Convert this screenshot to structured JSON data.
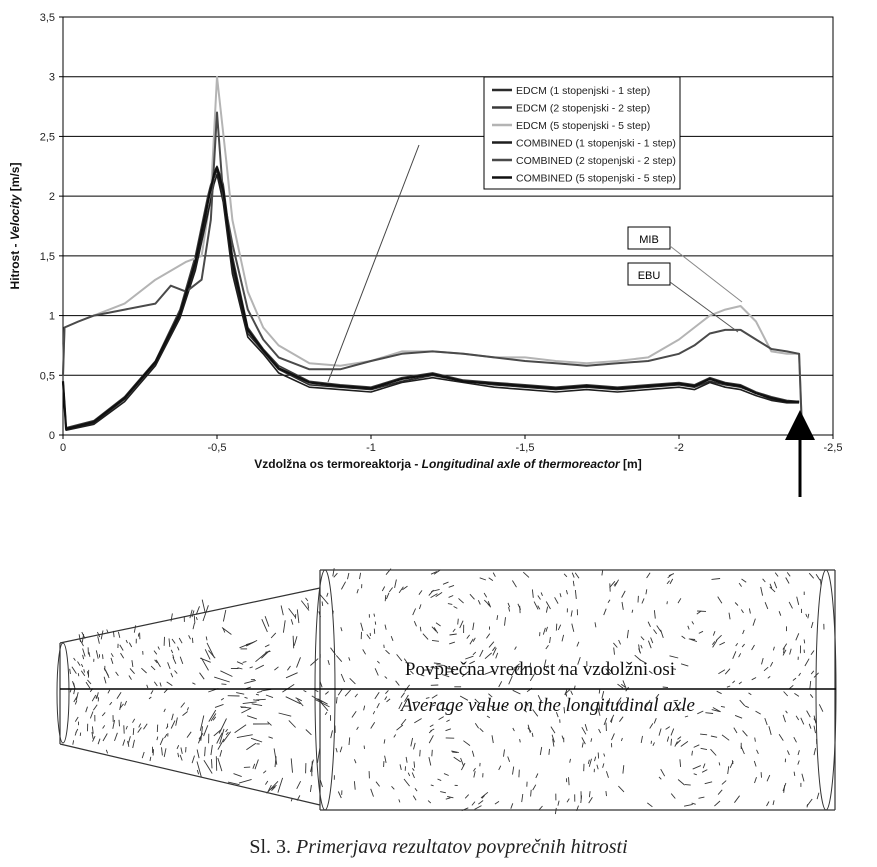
{
  "chart_data": {
    "type": "line",
    "ylabel_plain": "Hitrost - ",
    "ylabel_italic": "Velocity",
    "ylabel_unit": " [m/s]",
    "xlabel_plain": "Vzdolžna os termoreaktorja - ",
    "xlabel_italic": "Longitudinal axle of thermoreactor",
    "xlabel_unit": " [m]",
    "xlim": [
      0,
      -2.5
    ],
    "ylim": [
      0,
      3.5
    ],
    "x_ticks": [
      "0",
      "-0,5",
      "-1",
      "-1,5",
      "-2",
      "-2,5"
    ],
    "x_tick_values": [
      0,
      -0.5,
      -1,
      -1.5,
      -2,
      -2.5
    ],
    "y_ticks": [
      "0",
      "0,5",
      "1",
      "1,5",
      "2",
      "2,5",
      "3",
      "3,5"
    ],
    "y_tick_values": [
      0,
      0.5,
      1,
      1.5,
      2,
      2.5,
      3,
      3.5
    ],
    "grid": "horizontal",
    "legend_position": "top-right",
    "series": [
      {
        "name": "EDCM (1 stopenjski - 1 step)",
        "color": "#2b2b2b",
        "x": [
          0,
          -0.01,
          -0.1,
          -0.2,
          -0.3,
          -0.38,
          -0.43,
          -0.47,
          -0.49,
          -0.5,
          -0.52,
          -0.55,
          -0.6,
          -0.65,
          -0.7,
          -0.8,
          -0.9,
          -1.0,
          -1.1,
          -1.2,
          -1.3,
          -1.4,
          -1.5,
          -1.6,
          -1.7,
          -1.8,
          -1.9,
          -2.0,
          -2.05,
          -2.1,
          -2.15,
          -2.2,
          -2.25,
          -2.3,
          -2.35,
          -2.39
        ],
        "y": [
          0.45,
          0.05,
          0.1,
          0.3,
          0.6,
          1.0,
          1.4,
          1.9,
          2.15,
          2.22,
          2.0,
          1.4,
          0.85,
          0.7,
          0.55,
          0.42,
          0.4,
          0.38,
          0.45,
          0.5,
          0.45,
          0.42,
          0.4,
          0.38,
          0.4,
          0.38,
          0.4,
          0.42,
          0.4,
          0.45,
          0.42,
          0.4,
          0.35,
          0.3,
          0.28,
          0.28
        ]
      },
      {
        "name": "EDCM (2 stopenjski - 2 step)",
        "color": "#3a3a3a",
        "x": [
          0,
          -0.01,
          -0.1,
          -0.2,
          -0.3,
          -0.38,
          -0.43,
          -0.47,
          -0.49,
          -0.5,
          -0.52,
          -0.55,
          -0.6,
          -0.65,
          -0.7,
          -0.8,
          -0.9,
          -1.0,
          -1.1,
          -1.2,
          -1.3,
          -1.4,
          -1.5,
          -1.6,
          -1.7,
          -1.8,
          -1.9,
          -2.0,
          -2.05,
          -2.1,
          -2.15,
          -2.2,
          -2.25,
          -2.3,
          -2.35,
          -2.39
        ],
        "y": [
          0.45,
          0.06,
          0.12,
          0.32,
          0.62,
          1.05,
          1.5,
          2.0,
          2.2,
          2.25,
          2.1,
          1.5,
          0.9,
          0.72,
          0.58,
          0.45,
          0.42,
          0.4,
          0.48,
          0.52,
          0.46,
          0.44,
          0.42,
          0.4,
          0.42,
          0.4,
          0.42,
          0.44,
          0.42,
          0.48,
          0.44,
          0.42,
          0.36,
          0.32,
          0.29,
          0.28
        ]
      },
      {
        "name": "EDCM (5 stopenjski - 5 step)",
        "color": "#b4b4b4",
        "x": [
          0,
          -0.005,
          -0.05,
          -0.1,
          -0.2,
          -0.3,
          -0.4,
          -0.45,
          -0.48,
          -0.5,
          -0.53,
          -0.55,
          -0.6,
          -0.65,
          -0.7,
          -0.8,
          -0.9,
          -1.0,
          -1.1,
          -1.2,
          -1.3,
          -1.4,
          -1.5,
          -1.6,
          -1.7,
          -1.8,
          -1.9,
          -2.0,
          -2.05,
          -2.1,
          -2.15,
          -2.2,
          -2.25,
          -2.3,
          -2.35,
          -2.39,
          -2.4
        ],
        "y": [
          0.5,
          0.9,
          0.95,
          1.0,
          1.1,
          1.3,
          1.45,
          1.5,
          2.0,
          3.0,
          2.3,
          1.8,
          1.2,
          0.9,
          0.75,
          0.6,
          0.58,
          0.62,
          0.7,
          0.7,
          0.68,
          0.65,
          0.65,
          0.62,
          0.6,
          0.62,
          0.65,
          0.8,
          0.9,
          1.0,
          1.05,
          1.08,
          0.95,
          0.7,
          0.68,
          0.68,
          0.0
        ]
      },
      {
        "name": "COMBINED (1 stopenjski - 1 step)",
        "color": "#1e1e1e",
        "x": [
          0,
          -0.01,
          -0.1,
          -0.2,
          -0.3,
          -0.38,
          -0.43,
          -0.47,
          -0.49,
          -0.5,
          -0.52,
          -0.55,
          -0.6,
          -0.65,
          -0.7,
          -0.8,
          -0.9,
          -1.0,
          -1.1,
          -1.2,
          -1.3,
          -1.4,
          -1.5,
          -1.6,
          -1.7,
          -1.8,
          -1.9,
          -2.0,
          -2.05,
          -2.1,
          -2.15,
          -2.2,
          -2.25,
          -2.3,
          -2.35,
          -2.39
        ],
        "y": [
          0.45,
          0.04,
          0.09,
          0.28,
          0.58,
          0.98,
          1.38,
          1.85,
          2.1,
          2.18,
          1.95,
          1.35,
          0.82,
          0.68,
          0.52,
          0.4,
          0.38,
          0.36,
          0.44,
          0.48,
          0.44,
          0.4,
          0.38,
          0.36,
          0.38,
          0.36,
          0.38,
          0.4,
          0.38,
          0.44,
          0.4,
          0.38,
          0.33,
          0.29,
          0.27,
          0.27
        ]
      },
      {
        "name": "COMBINED (2 stopenjski - 2 step)",
        "color": "#4a4a4a",
        "x": [
          0,
          -0.005,
          -0.05,
          -0.1,
          -0.2,
          -0.3,
          -0.35,
          -0.4,
          -0.45,
          -0.48,
          -0.5,
          -0.52,
          -0.55,
          -0.6,
          -0.65,
          -0.7,
          -0.8,
          -0.9,
          -1.0,
          -1.1,
          -1.2,
          -1.3,
          -1.4,
          -1.5,
          -1.6,
          -1.7,
          -1.8,
          -1.9,
          -2.0,
          -2.05,
          -2.1,
          -2.15,
          -2.2,
          -2.25,
          -2.3,
          -2.35,
          -2.39,
          -2.4
        ],
        "y": [
          0.5,
          0.9,
          0.95,
          1.0,
          1.05,
          1.1,
          1.25,
          1.2,
          1.3,
          1.8,
          2.7,
          2.0,
          1.6,
          1.05,
          0.8,
          0.65,
          0.55,
          0.55,
          0.62,
          0.68,
          0.7,
          0.68,
          0.65,
          0.62,
          0.6,
          0.58,
          0.6,
          0.62,
          0.68,
          0.75,
          0.85,
          0.88,
          0.88,
          0.8,
          0.72,
          0.7,
          0.68,
          0.0
        ]
      },
      {
        "name": "COMBINED (5 stopenjski - 5 step)",
        "color": "#101010",
        "x": [
          0,
          -0.01,
          -0.1,
          -0.2,
          -0.3,
          -0.38,
          -0.43,
          -0.47,
          -0.49,
          -0.5,
          -0.52,
          -0.55,
          -0.6,
          -0.65,
          -0.7,
          -0.8,
          -0.9,
          -1.0,
          -1.1,
          -1.2,
          -1.3,
          -1.4,
          -1.5,
          -1.6,
          -1.7,
          -1.8,
          -1.9,
          -2.0,
          -2.05,
          -2.1,
          -2.15,
          -2.2,
          -2.25,
          -2.3,
          -2.35,
          -2.39
        ],
        "y": [
          0.45,
          0.05,
          0.11,
          0.31,
          0.61,
          1.02,
          1.45,
          1.95,
          2.18,
          2.24,
          2.05,
          1.45,
          0.88,
          0.71,
          0.56,
          0.44,
          0.41,
          0.39,
          0.47,
          0.51,
          0.45,
          0.43,
          0.41,
          0.39,
          0.41,
          0.39,
          0.41,
          0.43,
          0.41,
          0.47,
          0.43,
          0.41,
          0.35,
          0.31,
          0.28,
          0.28
        ]
      }
    ],
    "annotations": [
      "MIB",
      "EBU"
    ]
  },
  "diagram": {
    "label_line1": "Povprečna vrednost na vzdolžni osi",
    "label_line2": "Average value on the longitudinal axle"
  },
  "caption": {
    "number": "Sl. 3. ",
    "text": "Primerjava rezultatov povprečnih hitrosti"
  }
}
